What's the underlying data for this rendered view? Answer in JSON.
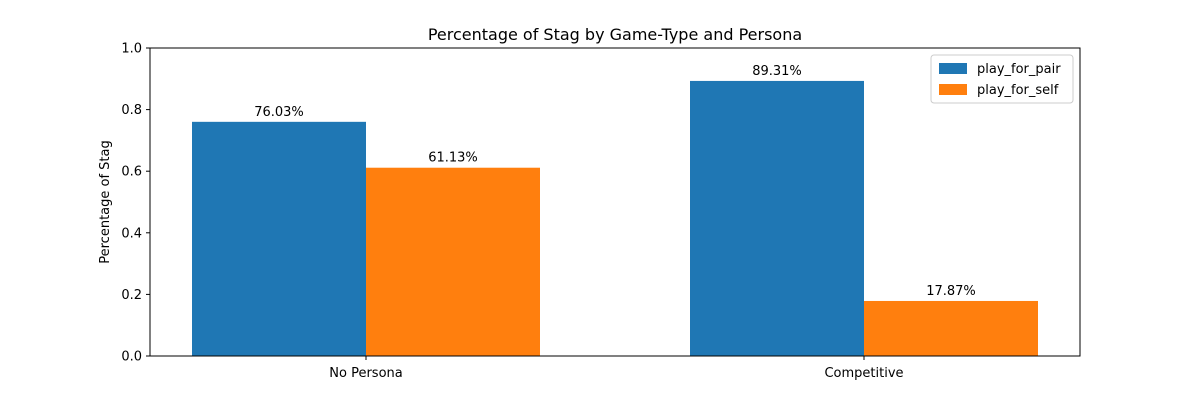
{
  "chart_data": {
    "type": "bar",
    "title": "Percentage of Stag by Game-Type and Persona",
    "xlabel": "",
    "ylabel": "Percentage of Stag",
    "categories": [
      "No Persona",
      "Competitive"
    ],
    "series": [
      {
        "name": "play_for_pair",
        "values": [
          0.7603,
          0.8931
        ],
        "labels": [
          "76.03%",
          "89.31%"
        ],
        "color": "#1f77b4"
      },
      {
        "name": "play_for_self",
        "values": [
          0.6113,
          0.1787
        ],
        "labels": [
          "61.13%",
          "17.87%"
        ],
        "color": "#ff7f0e"
      }
    ],
    "ylim": [
      0,
      1.0
    ],
    "yticks": [
      "0.0",
      "0.2",
      "0.4",
      "0.6",
      "0.8",
      "1.0"
    ],
    "grid": false,
    "legend_position": "top-right"
  }
}
